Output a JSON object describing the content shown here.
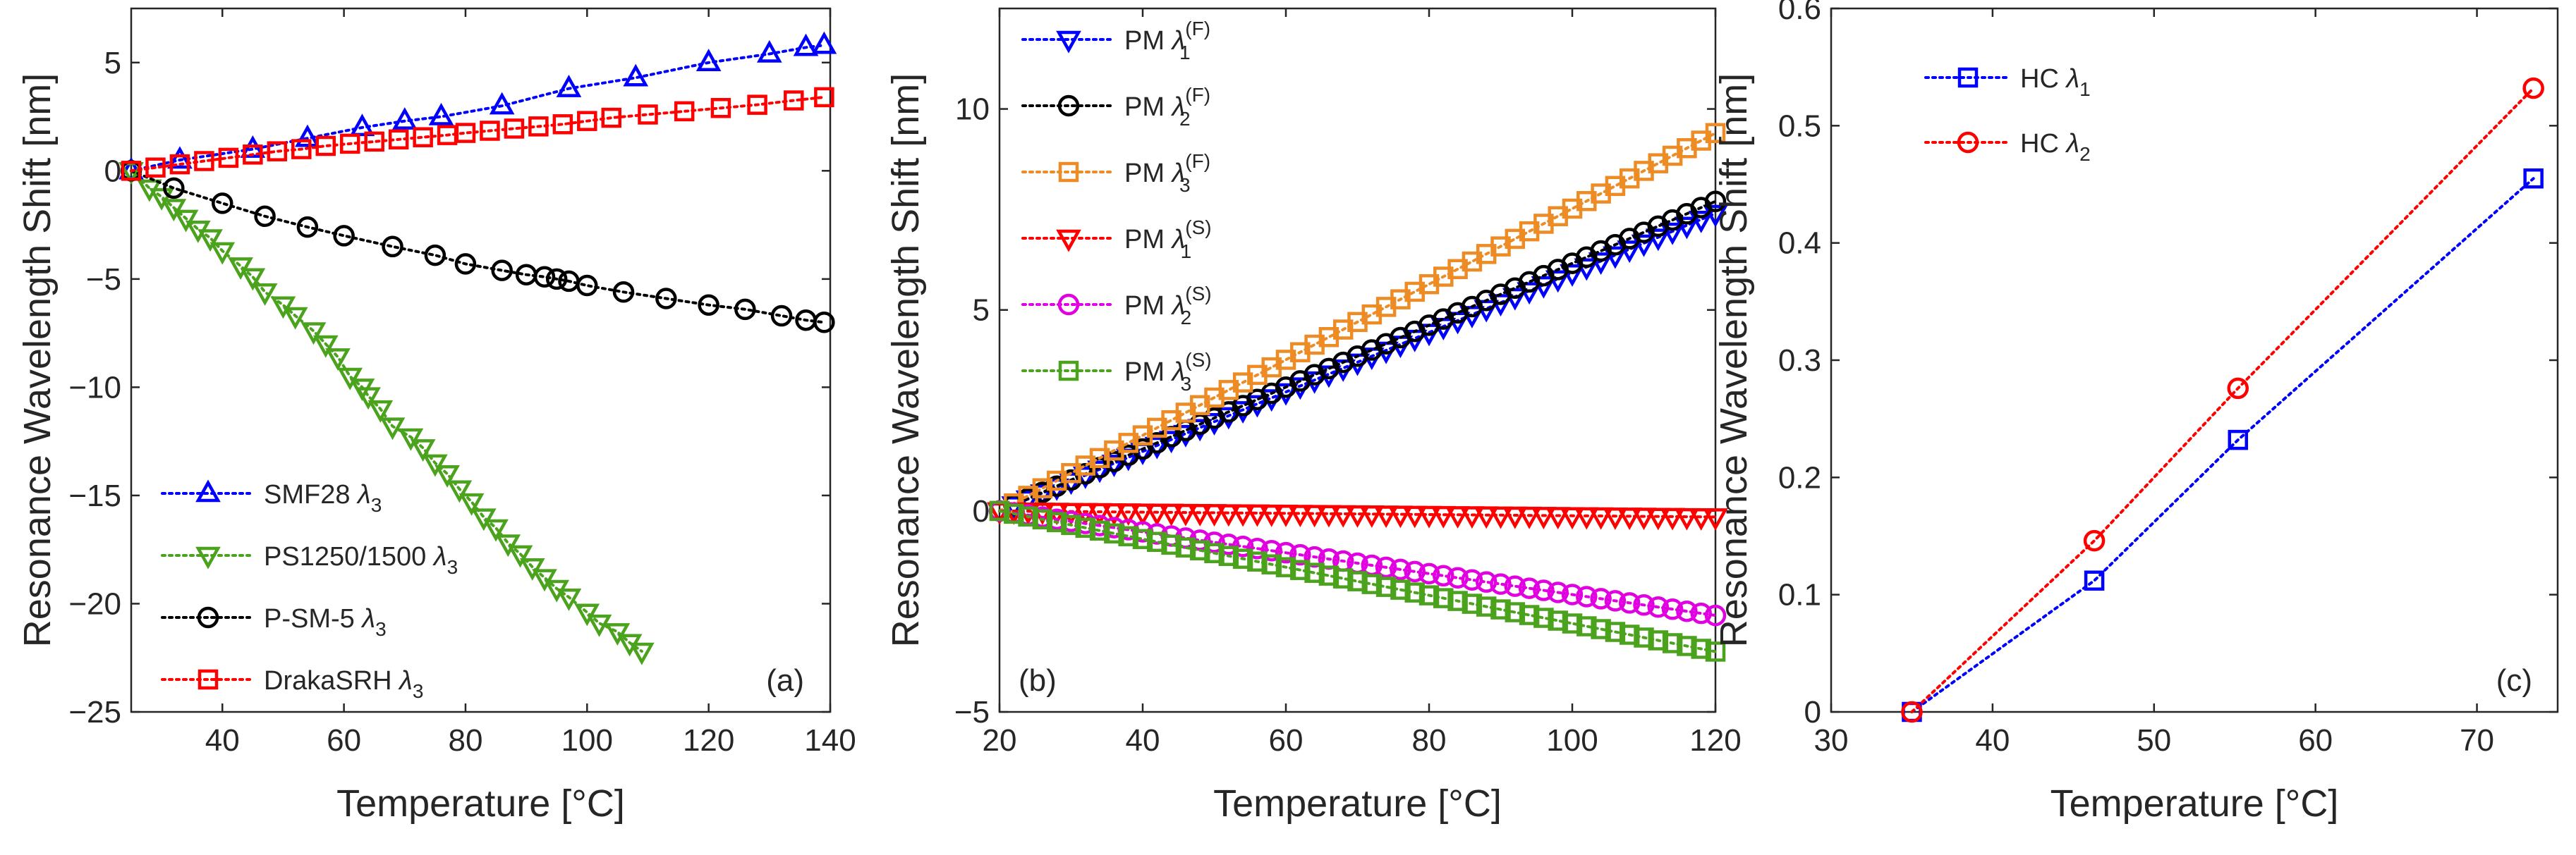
{
  "chart_data": [
    {
      "type": "line",
      "panel": "(a)",
      "xlabel": "Temperature [°C]",
      "ylabel": "Resonance Wavelength Shift [nm]",
      "xlim": [
        25,
        140
      ],
      "ylim": [
        -25,
        7.5
      ],
      "xticks": [
        40,
        60,
        80,
        100,
        120,
        140
      ],
      "yticks": [
        -25,
        -20,
        -15,
        -10,
        -5,
        0,
        5
      ],
      "legend_position": "bottom-left",
      "series": [
        {
          "name": "SMF28",
          "subscript_symbol": "3",
          "color": "#0000ff",
          "marker": "triangle-up",
          "x": [
            25,
            33,
            45,
            54,
            63,
            70,
            76,
            86,
            97,
            108,
            120,
            130,
            136,
            139
          ],
          "y": [
            0,
            0.5,
            1.0,
            1.5,
            2.0,
            2.3,
            2.5,
            3.0,
            3.8,
            4.3,
            5.0,
            5.4,
            5.7,
            5.8
          ]
        },
        {
          "name": "PS1250/1500",
          "subscript_symbol": "3",
          "color": "#4aa21d",
          "marker": "triangle-down",
          "x": [
            25,
            28,
            30,
            32,
            34,
            36,
            38,
            40,
            43,
            45,
            47,
            50,
            52,
            55,
            57,
            59,
            61,
            63,
            64,
            66,
            68,
            71,
            73,
            75,
            77,
            79,
            81,
            83,
            85,
            87,
            89,
            91,
            93,
            95,
            97,
            100,
            102,
            105,
            107,
            109
          ],
          "y": [
            0,
            -0.8,
            -1.2,
            -1.7,
            -2.2,
            -2.7,
            -3.1,
            -3.7,
            -4.4,
            -4.9,
            -5.6,
            -6.2,
            -6.7,
            -7.4,
            -8.0,
            -8.6,
            -9.5,
            -10.0,
            -10.4,
            -11.0,
            -11.8,
            -12.3,
            -12.8,
            -13.5,
            -14.0,
            -14.7,
            -15.3,
            -16.0,
            -16.5,
            -17.2,
            -17.7,
            -18.3,
            -18.8,
            -19.3,
            -19.7,
            -20.4,
            -20.9,
            -21.3,
            -21.8,
            -22.2
          ]
        },
        {
          "name": "P-SM-5",
          "subscript_symbol": "3",
          "color": "#000000",
          "marker": "circle",
          "x": [
            25,
            32,
            40,
            47,
            54,
            60,
            68,
            75,
            80,
            86,
            90,
            93,
            95,
            97,
            100,
            106,
            113,
            120,
            126,
            132,
            136,
            139
          ],
          "y": [
            0,
            -0.8,
            -1.5,
            -2.1,
            -2.6,
            -3.0,
            -3.5,
            -3.9,
            -4.3,
            -4.6,
            -4.8,
            -4.9,
            -5.0,
            -5.1,
            -5.3,
            -5.6,
            -5.9,
            -6.2,
            -6.4,
            -6.7,
            -6.9,
            -7.0
          ],
          "note": "partial"
        },
        {
          "name": "DrakaSRH",
          "subscript_symbol": "3",
          "color": "#ff0000",
          "marker": "square",
          "x": [
            25,
            29,
            33,
            37,
            41,
            45,
            49,
            53,
            57,
            61,
            65,
            69,
            73,
            77,
            80,
            84,
            88,
            92,
            96,
            100,
            104,
            110,
            116,
            122,
            128,
            134,
            139
          ],
          "y": [
            0,
            0.15,
            0.3,
            0.45,
            0.6,
            0.75,
            0.9,
            1.0,
            1.15,
            1.25,
            1.35,
            1.45,
            1.55,
            1.65,
            1.75,
            1.85,
            1.95,
            2.05,
            2.15,
            2.3,
            2.45,
            2.6,
            2.75,
            2.9,
            3.05,
            3.25,
            3.4
          ]
        }
      ]
    },
    {
      "type": "line",
      "panel": "(b)",
      "xlabel": "Temperature [°C]",
      "ylabel": "Resonance Wavelength Shift [nm]",
      "xlim": [
        20,
        120
      ],
      "ylim": [
        -5,
        12.5
      ],
      "xticks": [
        20,
        40,
        60,
        80,
        100,
        120
      ],
      "yticks": [
        -5,
        0,
        5,
        10
      ],
      "legend_position": "top-left",
      "series": [
        {
          "name": "PM",
          "symbol_sub": "1",
          "symbol_sup": "(F)",
          "color": "#0000ff",
          "marker": "triangle-down",
          "slope": 0.074,
          "x0": 20,
          "step": 2
        },
        {
          "name": "PM",
          "symbol_sub": "2",
          "symbol_sup": "(F)",
          "color": "#000000",
          "marker": "circle",
          "slope": 0.077,
          "x0": 20,
          "step": 2
        },
        {
          "name": "PM",
          "symbol_sub": "3",
          "symbol_sup": "(F)",
          "color": "#ed8b24",
          "marker": "square",
          "slope": 0.094,
          "x0": 20,
          "step": 2
        },
        {
          "name": "PM",
          "symbol_sub": "1",
          "symbol_sup": "(S)",
          "color": "#ff0000",
          "marker": "triangle-down",
          "slope": -0.0015,
          "x0": 20,
          "step": 2
        },
        {
          "name": "PM",
          "symbol_sub": "2",
          "symbol_sup": "(S)",
          "color": "#e000e0",
          "marker": "circle",
          "slope": -0.026,
          "x0": 20,
          "step": 2
        },
        {
          "name": "PM",
          "symbol_sub": "3",
          "symbol_sup": "(S)",
          "color": "#4aa21d",
          "marker": "square",
          "slope": -0.035,
          "x0": 20,
          "step": 2
        }
      ]
    },
    {
      "type": "line",
      "panel": "(c)",
      "xlabel": "Temperature [°C]",
      "ylabel": "Resonance Wavelength Shift [nm]",
      "xlim": [
        30,
        75
      ],
      "ylim": [
        0,
        0.6
      ],
      "xticks": [
        30,
        40,
        50,
        60,
        70
      ],
      "yticks": [
        0,
        0.1,
        0.2,
        0.3,
        0.4,
        0.5,
        0.6
      ],
      "legend_position": "top-left",
      "series": [
        {
          "name": "HC",
          "subscript_symbol": "1",
          "color": "#0000ff",
          "marker": "square",
          "x": [
            35,
            46.3,
            55.2,
            73.5
          ],
          "y": [
            0,
            0.112,
            0.232,
            0.455
          ]
        },
        {
          "name": "HC",
          "subscript_symbol": "2",
          "color": "#ff0000",
          "marker": "circle",
          "x": [
            35,
            46.3,
            55.2,
            73.5
          ],
          "y": [
            0,
            0.146,
            0.276,
            0.532
          ]
        }
      ]
    }
  ]
}
